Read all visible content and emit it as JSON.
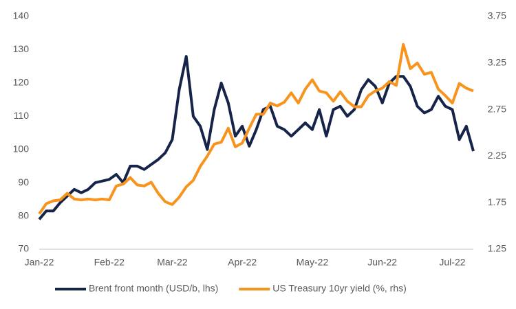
{
  "chart_data": {
    "type": "line",
    "categories": [
      "Jan-22",
      null,
      null,
      null,
      null,
      null,
      null,
      null,
      null,
      null,
      "Feb-22",
      null,
      null,
      null,
      null,
      null,
      null,
      null,
      null,
      "Mar-22",
      null,
      null,
      null,
      null,
      null,
      null,
      null,
      null,
      null,
      "Apr-22",
      null,
      null,
      null,
      null,
      null,
      null,
      null,
      null,
      null,
      "May-22",
      null,
      null,
      null,
      null,
      null,
      null,
      null,
      null,
      null,
      "Jun-22",
      null,
      null,
      null,
      null,
      null,
      null,
      null,
      null,
      null,
      "Jul-22",
      null,
      null,
      null
    ],
    "series": [
      {
        "name": "Brent front month (USD/b, lhs)",
        "color": "#17244a",
        "axis": "y",
        "values": [
          79,
          81.5,
          81.5,
          84,
          86,
          88,
          87,
          88,
          90,
          90.5,
          91,
          92.5,
          90,
          95,
          95,
          94,
          95.5,
          97,
          99,
          103,
          118,
          128,
          110,
          107,
          100,
          112,
          120,
          114,
          104,
          107,
          101,
          106,
          112,
          113,
          107,
          106,
          104,
          106,
          108,
          106,
          112,
          104,
          112,
          113,
          110,
          112,
          118,
          121,
          119,
          114,
          120,
          122,
          122,
          119,
          113,
          111,
          112,
          116,
          113,
          112,
          103,
          107,
          99.5
        ]
      },
      {
        "name": "US Treasury 10yr yield (%, rhs)",
        "color": "#f7941d",
        "axis": "y2",
        "values": [
          1.63,
          1.74,
          1.77,
          1.78,
          1.85,
          1.79,
          1.78,
          1.79,
          1.78,
          1.79,
          1.78,
          1.93,
          1.95,
          2.02,
          1.94,
          1.93,
          1.97,
          1.85,
          1.76,
          1.73,
          1.81,
          1.92,
          1.99,
          2.14,
          2.25,
          2.38,
          2.4,
          2.55,
          2.35,
          2.39,
          2.55,
          2.7,
          2.7,
          2.82,
          2.79,
          2.83,
          2.93,
          2.82,
          2.97,
          3.07,
          2.95,
          2.93,
          2.84,
          2.94,
          2.84,
          2.78,
          2.78,
          2.9,
          2.95,
          2.98,
          3.05,
          3.01,
          3.45,
          3.19,
          3.25,
          3.13,
          3.15,
          2.97,
          2.9,
          2.82,
          3.03,
          2.98,
          2.95
        ]
      }
    ],
    "ylim": [
      70,
      140
    ],
    "yticks": [
      70,
      80,
      90,
      100,
      110,
      120,
      130,
      140
    ],
    "y2lim": [
      1.25,
      3.75
    ],
    "y2ticks": [
      1.25,
      1.75,
      2.25,
      2.75,
      3.25,
      3.75
    ]
  }
}
